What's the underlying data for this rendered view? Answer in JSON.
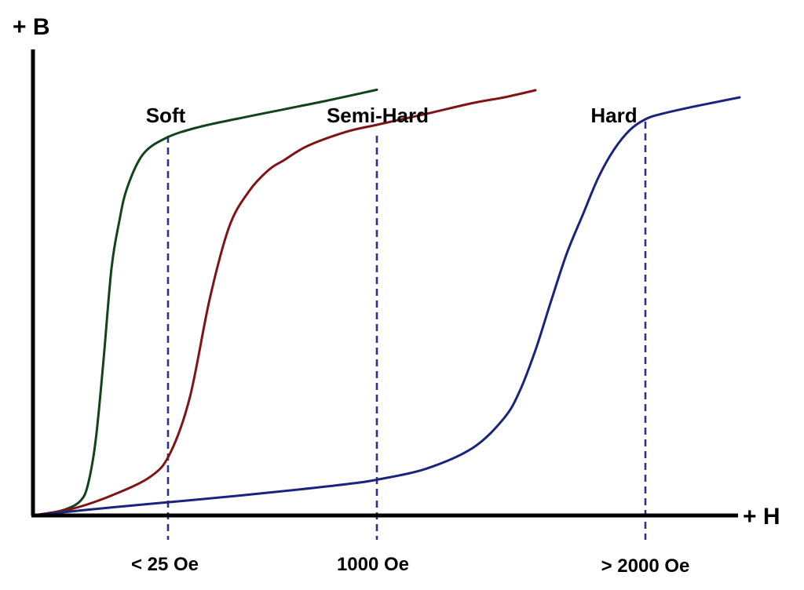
{
  "chart_data": {
    "type": "line",
    "title": "",
    "xlabel": "+ H",
    "ylabel": "+ B",
    "grid": false,
    "legend": "none",
    "axis_color": "#000000",
    "marker_color": "#2e3192",
    "series": [
      {
        "label": "Soft",
        "color": "#12431a",
        "x": [
          0,
          20,
          40,
          60,
          70,
          80,
          90,
          100,
          110,
          120,
          140,
          170,
          210,
          260,
          320,
          380,
          438
        ],
        "y": [
          0,
          5,
          12,
          30,
          65,
          160,
          330,
          520,
          620,
          690,
          760,
          795,
          817,
          835,
          855,
          875,
          896
        ]
      },
      {
        "label": "Semi-Hard",
        "color": "#7f1416",
        "x": [
          0,
          50,
          100,
          150,
          175,
          200,
          225,
          250,
          275,
          300,
          320,
          350,
          400,
          440,
          500,
          560,
          600,
          640
        ],
        "y": [
          0,
          14,
          42,
          82,
          132,
          250,
          455,
          608,
          682,
          727,
          748,
          778,
          808,
          823,
          845,
          868,
          880,
          895
        ]
      },
      {
        "label": "Hard",
        "color": "#1a237e",
        "x": [
          0,
          100,
          200,
          300,
          400,
          440,
          500,
          560,
          600,
          620,
          640,
          660,
          680,
          700,
          720,
          740,
          760,
          780,
          800,
          840,
          900
        ],
        "y": [
          0,
          17,
          32,
          48,
          66,
          76,
          98,
          142,
          205,
          262,
          348,
          452,
          552,
          632,
          711,
          770,
          811,
          834,
          845,
          860,
          880
        ]
      }
    ],
    "markers": [
      {
        "x": 172,
        "label": "< 25 Oe"
      },
      {
        "x": 438,
        "label": "1000 Oe"
      },
      {
        "x": 780,
        "label": "> 2000 Oe"
      }
    ]
  }
}
